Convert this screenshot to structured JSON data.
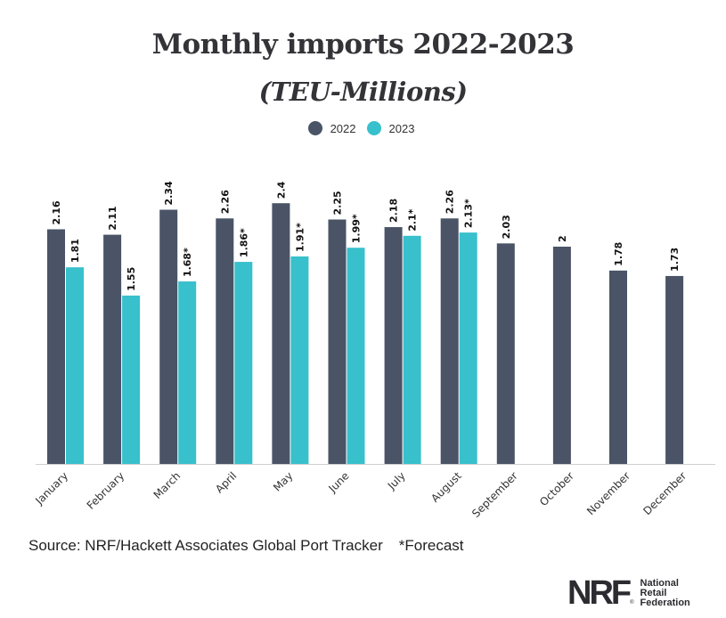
{
  "chart_data": {
    "type": "bar",
    "title": "Monthly imports 2022-2023",
    "subtitle": "(TEU-Millions)",
    "xlabel": "",
    "ylabel": "",
    "ylim": [
      0,
      2.4
    ],
    "grid": false,
    "legend_position": "top-center",
    "categories": [
      "January",
      "February",
      "March",
      "April",
      "May",
      "June",
      "July",
      "August",
      "September",
      "October",
      "November",
      "December"
    ],
    "series": [
      {
        "name": "2022",
        "color": "#4a5466",
        "values": [
          2.16,
          2.11,
          2.34,
          2.26,
          2.4,
          2.25,
          2.18,
          2.26,
          2.03,
          2,
          1.78,
          1.73
        ],
        "labels": [
          "2.16",
          "2.11",
          "2.34",
          "2.26",
          "2.4",
          "2.25",
          "2.18",
          "2.26",
          "2.03",
          "2",
          "1.78",
          "1.73"
        ]
      },
      {
        "name": "2023",
        "color": "#38c0cc",
        "values": [
          1.81,
          1.55,
          1.68,
          1.86,
          1.91,
          1.99,
          2.1,
          2.13,
          null,
          null,
          null,
          null
        ],
        "labels": [
          "1.81",
          "1.55",
          "1.68*",
          "1.86*",
          "1.91*",
          "1.99*",
          "2.1*",
          "2.13*",
          null,
          null,
          null,
          null
        ]
      }
    ]
  },
  "legend": [
    {
      "label": "2022",
      "color": "#4a5466"
    },
    {
      "label": "2023",
      "color": "#38c0cc"
    }
  ],
  "footer": {
    "source": "Source: NRF/Hackett Associates Global Port Tracker",
    "forecast_note": "*Forecast"
  },
  "logo": {
    "mark": "NRF",
    "registered": "®",
    "name_lines": [
      "National",
      "Retail",
      "Federation"
    ]
  }
}
